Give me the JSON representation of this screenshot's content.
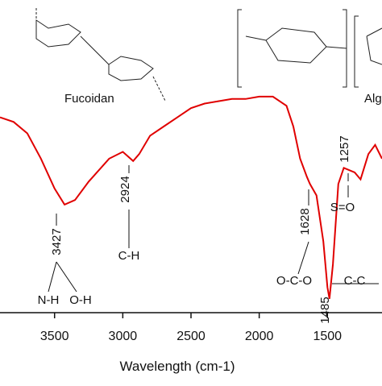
{
  "chart_data": {
    "type": "line",
    "x_label": "Wavelength (cm-1)",
    "x": [
      3900,
      3800,
      3700,
      3600,
      3500,
      3427,
      3350,
      3250,
      3100,
      3000,
      2924,
      2880,
      2800,
      2700,
      2600,
      2500,
      2400,
      2300,
      2200,
      2100,
      2000,
      1900,
      1800,
      1750,
      1700,
      1650,
      1628,
      1580,
      1530,
      1500,
      1485,
      1460,
      1420,
      1380,
      1300,
      1257,
      1200,
      1150,
      1100
    ],
    "series": [
      {
        "color": "#e00000",
        "values": [
          84,
          82,
          77,
          66,
          53,
          46,
          48,
          56,
          66,
          69,
          65,
          68,
          76,
          80,
          84,
          88,
          90,
          91,
          92,
          92,
          93,
          93,
          89,
          80,
          66,
          58,
          55,
          50,
          30,
          10,
          5,
          20,
          55,
          62,
          60,
          57,
          68,
          72,
          66
        ]
      }
    ],
    "xlim": [
      3900,
      1100
    ],
    "ylim": [
      0,
      100
    ],
    "xticks": [
      3500,
      3000,
      2500,
      2000,
      1500
    ],
    "annotations": [
      "3427",
      "N-H",
      "O-H",
      "2924",
      "C-H",
      "1628",
      "O-C-O",
      "1485",
      "C-C",
      "1257",
      "S=O",
      "Fucoidan",
      "Alg"
    ]
  }
}
